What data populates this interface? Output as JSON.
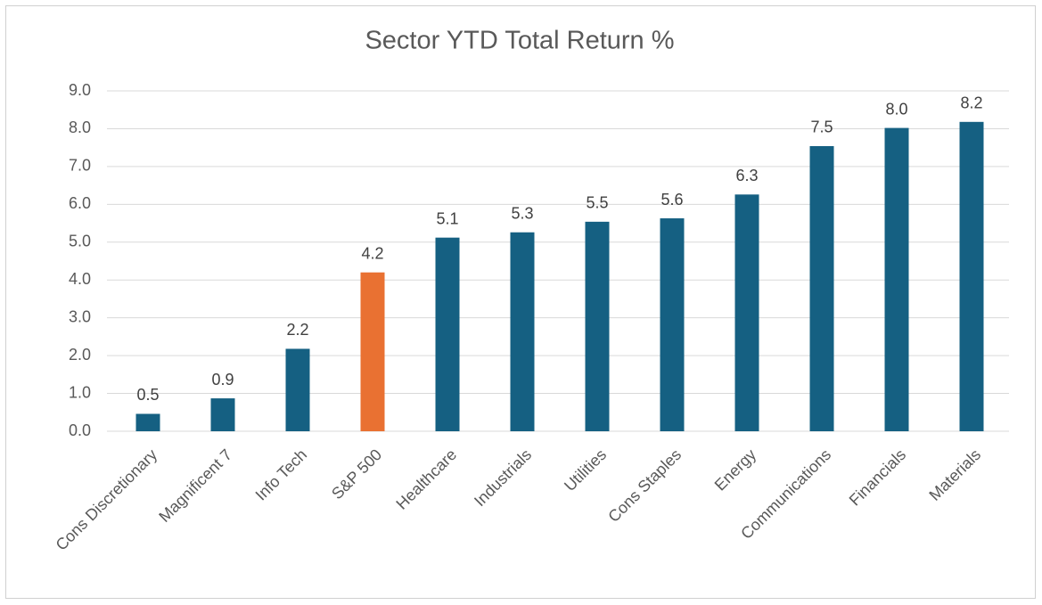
{
  "chart_data": {
    "type": "bar",
    "title": "Sector YTD Total Return %",
    "categories": [
      "Cons Discretionary",
      "Magnificent 7",
      "Info Tech",
      "S&P 500",
      "Healthcare",
      "Industrials",
      "Utilities",
      "Cons Staples",
      "Energy",
      "Communications",
      "Financials",
      "Materials"
    ],
    "values": [
      0.46,
      0.87,
      2.18,
      4.2,
      5.12,
      5.26,
      5.54,
      5.63,
      6.26,
      7.54,
      8.02,
      8.18
    ],
    "value_labels": [
      "0.5",
      "0.9",
      "2.2",
      "4.2",
      "5.1",
      "5.3",
      "5.5",
      "5.6",
      "6.3",
      "7.5",
      "8.0",
      "8.2"
    ],
    "colors": [
      "#156082",
      "#156082",
      "#156082",
      "#e97132",
      "#156082",
      "#156082",
      "#156082",
      "#156082",
      "#156082",
      "#156082",
      "#156082",
      "#156082"
    ],
    "ylim": [
      0,
      9
    ],
    "yticks": [
      {
        "value": 0,
        "label": "0.0"
      },
      {
        "value": 1,
        "label": "1.0"
      },
      {
        "value": 2,
        "label": "2.0"
      },
      {
        "value": 3,
        "label": "3.0"
      },
      {
        "value": 4,
        "label": "4.0"
      },
      {
        "value": 5,
        "label": "5.0"
      },
      {
        "value": 6,
        "label": "6.0"
      },
      {
        "value": 7,
        "label": "7.0"
      },
      {
        "value": 8,
        "label": "8.0"
      },
      {
        "value": 9,
        "label": "9.0"
      }
    ],
    "grid": true
  }
}
